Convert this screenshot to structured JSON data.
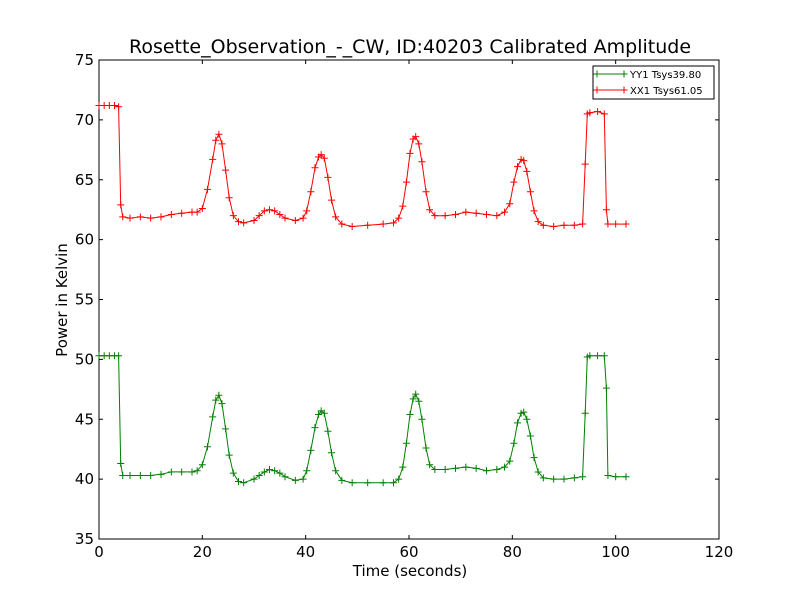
{
  "chart_data": {
    "type": "line",
    "title": "Rosette_Observation_-_CW, ID:40203 Calibrated Amplitude",
    "xlabel": "Time (seconds)",
    "ylabel": "Power in Kelvin",
    "xlim": [
      0,
      120
    ],
    "ylim": [
      35,
      75
    ],
    "xticks": [
      0,
      20,
      40,
      60,
      80,
      100,
      120
    ],
    "yticks": [
      35,
      40,
      45,
      50,
      55,
      60,
      65,
      70,
      75
    ],
    "grid": false,
    "legend_position": "top-right",
    "marker": "+",
    "series": [
      {
        "name": "YY1 Tsys39.80",
        "color": "#008000",
        "points": [
          [
            0,
            50.3
          ],
          [
            1,
            50.3
          ],
          [
            2,
            50.3
          ],
          [
            3,
            50.3
          ],
          [
            3.8,
            50.3
          ],
          [
            4.2,
            41.3
          ],
          [
            4.6,
            40.3
          ],
          [
            6,
            40.3
          ],
          [
            8,
            40.3
          ],
          [
            10,
            40.3
          ],
          [
            12,
            40.4
          ],
          [
            14,
            40.6
          ],
          [
            16,
            40.6
          ],
          [
            18,
            40.6
          ],
          [
            19,
            40.7
          ],
          [
            20,
            41.2
          ],
          [
            21,
            42.7
          ],
          [
            22,
            45.2
          ],
          [
            22.6,
            46.6
          ],
          [
            23.2,
            47.0
          ],
          [
            23.8,
            46.3
          ],
          [
            24.5,
            44.2
          ],
          [
            25.2,
            42.0
          ],
          [
            26,
            40.5
          ],
          [
            27,
            39.8
          ],
          [
            28,
            39.7
          ],
          [
            30,
            40.0
          ],
          [
            31,
            40.3
          ],
          [
            32,
            40.6
          ],
          [
            33,
            40.8
          ],
          [
            34,
            40.7
          ],
          [
            35,
            40.5
          ],
          [
            36,
            40.2
          ],
          [
            38,
            39.9
          ],
          [
            39.5,
            40.0
          ],
          [
            40.2,
            40.7
          ],
          [
            41,
            42.4
          ],
          [
            41.8,
            44.3
          ],
          [
            42.5,
            45.4
          ],
          [
            43,
            45.7
          ],
          [
            43.6,
            45.5
          ],
          [
            44.3,
            44.0
          ],
          [
            45,
            42.2
          ],
          [
            45.8,
            40.7
          ],
          [
            47,
            39.9
          ],
          [
            49,
            39.7
          ],
          [
            52,
            39.7
          ],
          [
            55,
            39.7
          ],
          [
            57,
            39.7
          ],
          [
            58,
            40.0
          ],
          [
            58.8,
            41.0
          ],
          [
            59.5,
            43.0
          ],
          [
            60.2,
            45.4
          ],
          [
            60.8,
            46.7
          ],
          [
            61.3,
            47.1
          ],
          [
            61.9,
            46.5
          ],
          [
            62.5,
            45.0
          ],
          [
            63.3,
            42.6
          ],
          [
            64,
            41.2
          ],
          [
            65,
            40.8
          ],
          [
            67,
            40.8
          ],
          [
            69,
            40.9
          ],
          [
            71,
            41.0
          ],
          [
            73,
            40.9
          ],
          [
            75,
            40.7
          ],
          [
            77,
            40.8
          ],
          [
            78.5,
            41.0
          ],
          [
            79.5,
            41.5
          ],
          [
            80.3,
            43.0
          ],
          [
            81,
            44.7
          ],
          [
            81.7,
            45.5
          ],
          [
            82.2,
            45.6
          ],
          [
            82.8,
            45.0
          ],
          [
            83.5,
            43.6
          ],
          [
            84.2,
            41.8
          ],
          [
            85,
            40.6
          ],
          [
            86,
            40.1
          ],
          [
            88,
            40.0
          ],
          [
            90,
            40.0
          ],
          [
            92,
            40.1
          ],
          [
            93.6,
            40.2
          ],
          [
            94.1,
            45.5
          ],
          [
            94.5,
            50.2
          ],
          [
            95,
            50.3
          ],
          [
            96.5,
            50.3
          ],
          [
            97.8,
            50.3
          ],
          [
            98.2,
            47.6
          ],
          [
            98.5,
            40.3
          ],
          [
            100,
            40.2
          ],
          [
            102,
            40.2
          ]
        ]
      },
      {
        "name": "XX1 Tsys61.05",
        "color": "#ff0000",
        "points": [
          [
            0,
            71.2
          ],
          [
            1,
            71.2
          ],
          [
            2,
            71.2
          ],
          [
            3,
            71.2
          ],
          [
            3.8,
            71.1
          ],
          [
            4.2,
            62.9
          ],
          [
            4.6,
            61.9
          ],
          [
            6,
            61.8
          ],
          [
            8,
            61.9
          ],
          [
            10,
            61.8
          ],
          [
            12,
            61.9
          ],
          [
            14,
            62.1
          ],
          [
            16,
            62.2
          ],
          [
            18,
            62.3
          ],
          [
            19,
            62.3
          ],
          [
            20,
            62.6
          ],
          [
            21,
            64.2
          ],
          [
            22,
            66.7
          ],
          [
            22.6,
            68.3
          ],
          [
            23.2,
            68.8
          ],
          [
            23.8,
            68.0
          ],
          [
            24.5,
            65.8
          ],
          [
            25.2,
            63.5
          ],
          [
            26,
            62.0
          ],
          [
            27,
            61.5
          ],
          [
            28,
            61.4
          ],
          [
            30,
            61.6
          ],
          [
            31,
            62.0
          ],
          [
            32,
            62.4
          ],
          [
            33,
            62.5
          ],
          [
            34,
            62.4
          ],
          [
            35,
            62.1
          ],
          [
            36,
            61.8
          ],
          [
            38,
            61.6
          ],
          [
            39.5,
            61.8
          ],
          [
            40.2,
            62.4
          ],
          [
            41,
            64.0
          ],
          [
            41.8,
            66.0
          ],
          [
            42.5,
            66.9
          ],
          [
            43,
            67.1
          ],
          [
            43.6,
            66.8
          ],
          [
            44.3,
            65.2
          ],
          [
            45,
            63.3
          ],
          [
            45.8,
            61.9
          ],
          [
            47,
            61.3
          ],
          [
            49,
            61.1
          ],
          [
            52,
            61.2
          ],
          [
            55,
            61.3
          ],
          [
            57,
            61.4
          ],
          [
            58,
            61.8
          ],
          [
            58.8,
            62.8
          ],
          [
            59.5,
            64.8
          ],
          [
            60.2,
            67.2
          ],
          [
            60.8,
            68.4
          ],
          [
            61.3,
            68.6
          ],
          [
            61.9,
            68.0
          ],
          [
            62.5,
            66.5
          ],
          [
            63.3,
            64.0
          ],
          [
            64,
            62.5
          ],
          [
            65,
            62.0
          ],
          [
            67,
            62.0
          ],
          [
            69,
            62.1
          ],
          [
            71,
            62.3
          ],
          [
            73,
            62.2
          ],
          [
            75,
            62.1
          ],
          [
            77,
            62.0
          ],
          [
            78.5,
            62.3
          ],
          [
            79.5,
            63.0
          ],
          [
            80.3,
            64.8
          ],
          [
            81,
            66.1
          ],
          [
            81.7,
            66.7
          ],
          [
            82.2,
            66.6
          ],
          [
            82.8,
            65.7
          ],
          [
            83.5,
            64.0
          ],
          [
            84.2,
            62.4
          ],
          [
            85,
            61.5
          ],
          [
            86,
            61.2
          ],
          [
            88,
            61.1
          ],
          [
            90,
            61.2
          ],
          [
            92,
            61.2
          ],
          [
            93.6,
            61.3
          ],
          [
            94.1,
            66.3
          ],
          [
            94.5,
            70.5
          ],
          [
            95,
            70.6
          ],
          [
            96.5,
            70.7
          ],
          [
            97.8,
            70.5
          ],
          [
            98.2,
            62.5
          ],
          [
            98.5,
            61.3
          ],
          [
            100,
            61.3
          ],
          [
            102,
            61.3
          ]
        ]
      }
    ]
  }
}
